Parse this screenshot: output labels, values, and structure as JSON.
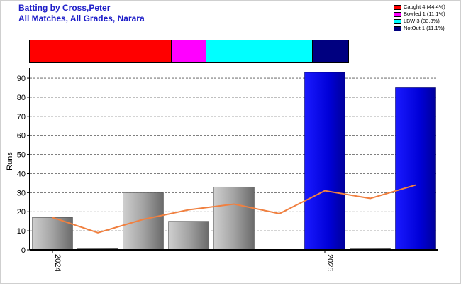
{
  "header": {
    "title_line1": "Batting by Cross,Peter",
    "title_line2": "All Matches, All Grades, Narara"
  },
  "dismissals": {
    "items": [
      {
        "label": "Caught 4 (44.4%)",
        "color": "#ff0000",
        "share": 44.4
      },
      {
        "label": "Bowled 1 (11.1%)",
        "color": "#ff00ff",
        "share": 11.1
      },
      {
        "label": "LBW 3 (33.3%)",
        "color": "#00ffff",
        "share": 33.3
      },
      {
        "label": "NotOut 1 (11.1%)",
        "color": "#000080",
        "share": 11.1
      }
    ]
  },
  "chart_data": {
    "type": "bar",
    "ylabel": "Runs",
    "ylim": [
      0,
      93
    ],
    "yticks": [
      0,
      10,
      20,
      30,
      40,
      50,
      60,
      70,
      80,
      90
    ],
    "grid": true,
    "x_tick_labels": [
      {
        "label": "2024",
        "index": 0
      },
      {
        "label": "2025",
        "index": 6
      }
    ],
    "series": [
      {
        "type": "bar",
        "values": [
          17,
          1,
          30,
          15,
          33,
          0,
          93,
          1,
          85
        ],
        "colors": [
          "grey",
          "grey",
          "grey",
          "grey",
          "grey",
          "grey",
          "blue",
          "grey",
          "blue"
        ]
      },
      {
        "type": "line",
        "color": "#f08040",
        "values": [
          17,
          9,
          16,
          21,
          24,
          19,
          31,
          27,
          34
        ]
      }
    ]
  }
}
